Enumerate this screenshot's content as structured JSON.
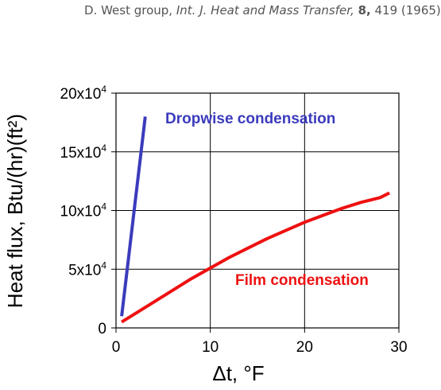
{
  "citation": {
    "authors": "D. West group,",
    "journal": "Int. J. Heat and Mass Transfer,",
    "volume": "8,",
    "pages_year": "419 (1965)"
  },
  "colors": {
    "dropwise": "#3b3bbd",
    "film": "#ee1111",
    "grid": "#000000"
  },
  "chart_data": {
    "type": "line",
    "title": "",
    "xlabel": "Δt, °F",
    "ylabel": "Heat flux, Btu/(hr)(ft²)",
    "xlim": [
      0,
      30
    ],
    "ylim": [
      0,
      200000
    ],
    "grid": true,
    "x_ticks": [
      {
        "v": 0,
        "label": "0"
      },
      {
        "v": 10,
        "label": "10"
      },
      {
        "v": 20,
        "label": "20"
      },
      {
        "v": 30,
        "label": "30"
      }
    ],
    "y_ticks": [
      {
        "v": 0,
        "mant": "0",
        "exp": ""
      },
      {
        "v": 50000,
        "mant": "5x10",
        "exp": "4"
      },
      {
        "v": 100000,
        "mant": "10x10",
        "exp": "4"
      },
      {
        "v": 150000,
        "mant": "15x10",
        "exp": "4"
      },
      {
        "v": 200000,
        "mant": "20x10",
        "exp": "4"
      }
    ],
    "series": [
      {
        "name": "Dropwise condensation",
        "color": "#3b3bbd",
        "x": [
          0.6,
          3.1
        ],
        "y": [
          10000,
          180000
        ]
      },
      {
        "name": "Film condensation",
        "color": "#ee1111",
        "x": [
          0.6,
          2,
          4,
          6,
          8,
          10,
          12,
          14,
          16,
          18,
          20,
          22,
          24,
          26,
          28,
          29
        ],
        "y": [
          5000,
          12000,
          22000,
          32000,
          42000,
          51000,
          60000,
          68000,
          76000,
          83000,
          90000,
          96000,
          102000,
          107000,
          111000,
          115000
        ]
      }
    ]
  }
}
